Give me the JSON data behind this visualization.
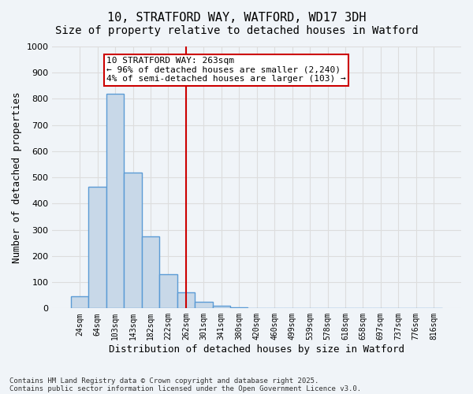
{
  "title_line1": "10, STRATFORD WAY, WATFORD, WD17 3DH",
  "title_line2": "Size of property relative to detached houses in Watford",
  "xlabel": "Distribution of detached houses by size in Watford",
  "ylabel": "Number of detached properties",
  "bar_labels": [
    "24sqm",
    "64sqm",
    "103sqm",
    "143sqm",
    "182sqm",
    "222sqm",
    "262sqm",
    "301sqm",
    "341sqm",
    "380sqm",
    "420sqm",
    "460sqm",
    "499sqm",
    "539sqm",
    "578sqm",
    "618sqm",
    "658sqm",
    "697sqm",
    "737sqm",
    "776sqm",
    "816sqm"
  ],
  "bar_heights": [
    45,
    465,
    820,
    520,
    275,
    130,
    60,
    25,
    10,
    5,
    2,
    1,
    0,
    0,
    0,
    0,
    0,
    0,
    0,
    0,
    0
  ],
  "bar_color": "#c8d8e8",
  "bar_edgecolor": "#5b9bd5",
  "bar_linewidth": 1.0,
  "vline_x_index": 6,
  "vline_color": "#cc0000",
  "annotation_text": "10 STRATFORD WAY: 263sqm\n← 96% of detached houses are smaller (2,240)\n4% of semi-detached houses are larger (103) →",
  "annotation_box_color": "#cc0000",
  "annotation_text_fontsize": 8,
  "ylim": [
    0,
    1000
  ],
  "yticks": [
    0,
    100,
    200,
    300,
    400,
    500,
    600,
    700,
    800,
    900,
    1000
  ],
  "grid_color": "#dddddd",
  "background_color": "#f0f4f8",
  "plot_bg_color": "#f0f4f8",
  "footer_line1": "Contains HM Land Registry data © Crown copyright and database right 2025.",
  "footer_line2": "Contains public sector information licensed under the Open Government Licence v3.0.",
  "title_fontsize": 11,
  "subtitle_fontsize": 10,
  "xlabel_fontsize": 9,
  "ylabel_fontsize": 9
}
